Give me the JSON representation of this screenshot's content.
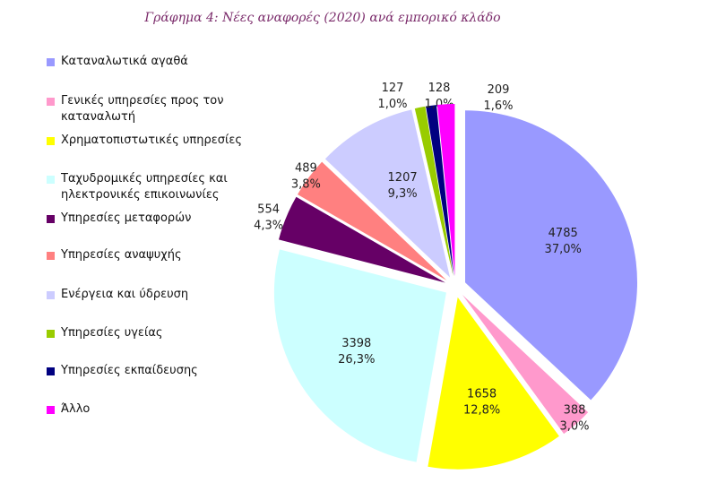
{
  "chart_data": {
    "type": "pie",
    "title": "Γράφημα 4: Νέες αναφορές (2020) ανά εμπορικό κλάδο",
    "legend_position": "left",
    "slices": [
      {
        "name": "Καταναλωτικά αγαθά",
        "value": 4785,
        "percent": "37,0%",
        "color": "#9999ff"
      },
      {
        "name": "Γενικές υπηρεσίες προς τον καταναλωτή",
        "value": 388,
        "percent": "3,0%",
        "color": "#ff99cc"
      },
      {
        "name": "Χρηματοπιστωτικές υπηρεσίες",
        "value": 1658,
        "percent": "12,8%",
        "color": "#ffff00"
      },
      {
        "name": "Ταχυδρομικές υπηρεσίες και ηλεκτρονικές επικοινωνίες",
        "value": 3398,
        "percent": "26,3%",
        "color": "#ccffff"
      },
      {
        "name": "Υπηρεσίες μεταφορών",
        "value": 554,
        "percent": "4,3%",
        "color": "#660066"
      },
      {
        "name": "Υπηρεσίες αναψυχής",
        "value": 489,
        "percent": "3,8%",
        "color": "#ff8080"
      },
      {
        "name": "Ενέργεια και ύδρευση",
        "value": 1207,
        "percent": "9,3%",
        "color": "#ccccff"
      },
      {
        "name": "Υπηρεσίες υγείας",
        "value": 127,
        "percent": "1,0%",
        "color": "#99cc00"
      },
      {
        "name": "Υπηρεσίες εκπαίδευσης",
        "value": 128,
        "percent": "1,0%",
        "color": "#000080"
      },
      {
        "name": "Άλλο",
        "value": 209,
        "percent": "1,6%",
        "color": "#ff00ff"
      }
    ]
  }
}
